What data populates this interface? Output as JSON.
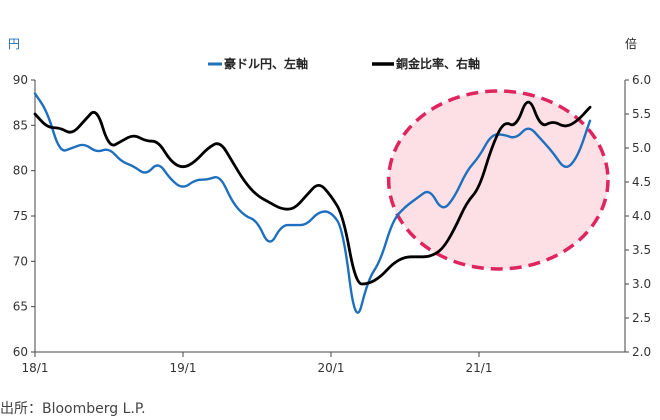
{
  "chart_data": {
    "type": "line",
    "source": "出所：Bloomberg L.P.",
    "left_unit": "円",
    "right_unit": "倍",
    "x_ticks": [
      "18/1",
      "19/1",
      "20/1",
      "21/1"
    ],
    "x_range": [
      "2018-01",
      "2021-10"
    ],
    "y_left": {
      "range": [
        60,
        90
      ],
      "ticks": [
        "60",
        "65",
        "70",
        "75",
        "80",
        "85",
        "90"
      ]
    },
    "y_right": {
      "range": [
        2.0,
        6.0
      ],
      "ticks": [
        "2.0",
        "2.5",
        "3.0",
        "3.5",
        "4.0",
        "4.5",
        "5.0",
        "5.5",
        "6.0"
      ]
    },
    "legend": {
      "position": "top-center"
    },
    "series": [
      {
        "name": "豪ドル円、左軸",
        "axis": "left",
        "color": "#1f6fbf",
        "x": [
          "2018-01",
          "2018-02",
          "2018-03",
          "2018-04",
          "2018-05",
          "2018-06",
          "2018-07",
          "2018-08",
          "2018-09",
          "2018-10",
          "2018-11",
          "2018-12",
          "2019-01",
          "2019-02",
          "2019-03",
          "2019-04",
          "2019-05",
          "2019-06",
          "2019-07",
          "2019-08",
          "2019-09",
          "2019-10",
          "2019-11",
          "2019-12",
          "2020-01",
          "2020-02",
          "2020-03",
          "2020-04",
          "2020-05",
          "2020-06",
          "2020-07",
          "2020-08",
          "2020-09",
          "2020-10",
          "2020-11",
          "2020-12",
          "2021-01",
          "2021-02",
          "2021-03",
          "2021-04",
          "2021-05",
          "2021-06",
          "2021-07",
          "2021-08",
          "2021-09",
          "2021-10"
        ],
        "values": [
          88.5,
          86.5,
          82.0,
          82.5,
          83.0,
          82.0,
          82.5,
          81.0,
          80.5,
          79.5,
          81.0,
          79.0,
          78.0,
          79.0,
          79.0,
          79.5,
          76.5,
          75.0,
          74.5,
          71.5,
          74.0,
          74.0,
          74.0,
          75.5,
          75.5,
          73.5,
          62.5,
          68.0,
          70.0,
          74.5,
          76.0,
          77.0,
          78.0,
          75.5,
          77.0,
          80.0,
          81.5,
          84.0,
          84.0,
          83.5,
          85.0,
          83.5,
          82.0,
          80.0,
          81.5,
          85.5
        ]
      },
      {
        "name": "銅金比率、右軸",
        "axis": "right",
        "color": "#000000",
        "x": [
          "2018-01",
          "2018-02",
          "2018-03",
          "2018-04",
          "2018-05",
          "2018-06",
          "2018-07",
          "2018-08",
          "2018-09",
          "2018-10",
          "2018-11",
          "2018-12",
          "2019-01",
          "2019-02",
          "2019-03",
          "2019-04",
          "2019-05",
          "2019-06",
          "2019-07",
          "2019-08",
          "2019-09",
          "2019-10",
          "2019-11",
          "2019-12",
          "2020-01",
          "2020-02",
          "2020-03",
          "2020-04",
          "2020-05",
          "2020-06",
          "2020-07",
          "2020-08",
          "2020-09",
          "2020-10",
          "2020-11",
          "2020-12",
          "2021-01",
          "2021-02",
          "2021-03",
          "2021-04",
          "2021-05",
          "2021-06",
          "2021-07",
          "2021-08",
          "2021-09",
          "2021-10"
        ],
        "values": [
          5.5,
          5.3,
          5.3,
          5.2,
          5.4,
          5.6,
          5.0,
          5.1,
          5.2,
          5.1,
          5.1,
          4.8,
          4.7,
          4.8,
          5.0,
          5.1,
          4.8,
          4.5,
          4.3,
          4.2,
          4.1,
          4.1,
          4.3,
          4.5,
          4.3,
          4.0,
          3.0,
          3.0,
          3.1,
          3.3,
          3.4,
          3.4,
          3.4,
          3.5,
          3.8,
          4.2,
          4.4,
          5.0,
          5.4,
          5.3,
          5.8,
          5.3,
          5.4,
          5.3,
          5.4,
          5.6
        ]
      }
    ],
    "highlight": {
      "from": "2020-06",
      "to": "2021-10",
      "fill": "#fde0e6",
      "stroke": "#e0245e"
    }
  }
}
